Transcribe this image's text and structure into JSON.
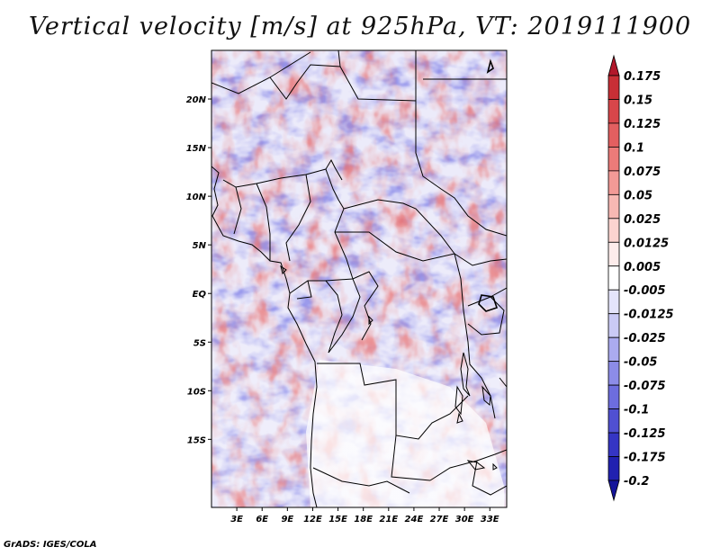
{
  "title": "Vertical velocity [m/s] at 925hPa, VT: 2019111900",
  "credit": "GrADS: IGES/COLA",
  "map": {
    "lon_range": [
      0,
      35
    ],
    "lat_range": [
      -22,
      25
    ],
    "lat_ticks": [
      {
        "value": 20,
        "label": "20N"
      },
      {
        "value": 15,
        "label": "15N"
      },
      {
        "value": 10,
        "label": "10N"
      },
      {
        "value": 5,
        "label": "5N"
      },
      {
        "value": 0,
        "label": "EQ"
      },
      {
        "value": -5,
        "label": "5S"
      },
      {
        "value": -10,
        "label": "10S"
      },
      {
        "value": -15,
        "label": "15S"
      }
    ],
    "lon_ticks": [
      {
        "value": 3,
        "label": "3E"
      },
      {
        "value": 6,
        "label": "6E"
      },
      {
        "value": 9,
        "label": "9E"
      },
      {
        "value": 12,
        "label": "12E"
      },
      {
        "value": 15,
        "label": "15E"
      },
      {
        "value": 18,
        "label": "18E"
      },
      {
        "value": 21,
        "label": "21E"
      },
      {
        "value": 24,
        "label": "24E"
      },
      {
        "value": 27,
        "label": "27E"
      },
      {
        "value": 30,
        "label": "30E"
      },
      {
        "value": 33,
        "label": "33E"
      }
    ]
  },
  "colorbar": {
    "labels": [
      "0.175",
      "0.15",
      "0.125",
      "0.1",
      "0.075",
      "0.05",
      "0.025",
      "0.0125",
      "0.005",
      "-0.005",
      "-0.0125",
      "-0.025",
      "-0.05",
      "-0.075",
      "-0.1",
      "-0.125",
      "-0.175",
      "-0.2"
    ],
    "colors": [
      "#b2182b",
      "#c82f36",
      "#d8464a",
      "#e35f60",
      "#ec7b79",
      "#f29a96",
      "#f7b8b3",
      "#fbd4d0",
      "#fdeceb",
      "#ffffff",
      "#e4e4fb",
      "#cacaf5",
      "#ababef",
      "#8c8ce8",
      "#6d6dde",
      "#5050d2",
      "#3535c4",
      "#2121b0",
      "#14149a"
    ]
  }
}
